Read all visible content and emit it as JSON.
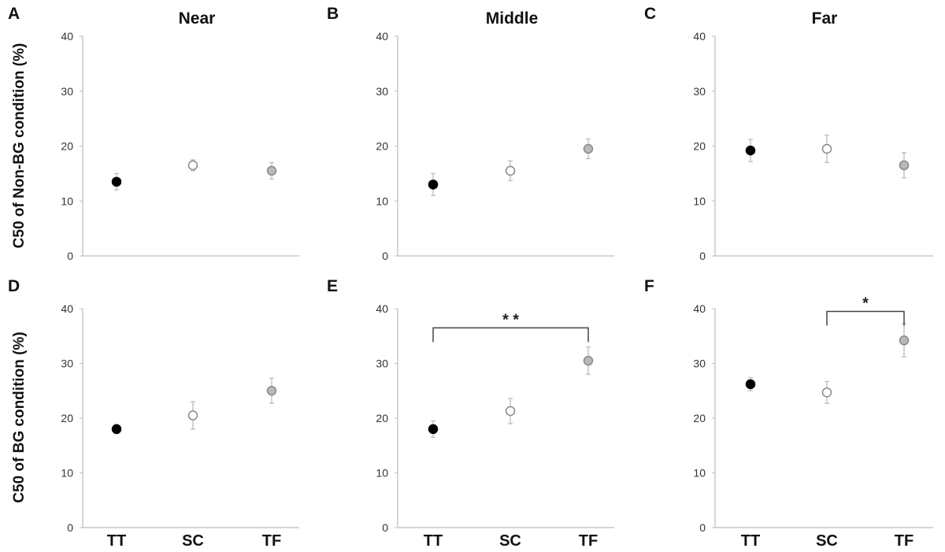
{
  "chart_data": [
    {
      "type": "scatter",
      "panel": "A",
      "title": "Near",
      "ylabel": "C50 of Non-BG condition (%)",
      "categories": [
        "TT",
        "SC",
        "TF"
      ],
      "ylim": [
        0,
        40
      ],
      "yticks": [
        0,
        10,
        20,
        30,
        40
      ],
      "values": [
        13.5,
        16.5,
        15.5
      ],
      "errors": [
        1.5,
        1.0,
        1.5
      ],
      "show_category_labels": false,
      "significance": null
    },
    {
      "type": "scatter",
      "panel": "B",
      "title": "Middle",
      "ylabel": "",
      "categories": [
        "TT",
        "SC",
        "TF"
      ],
      "ylim": [
        0,
        40
      ],
      "yticks": [
        0,
        10,
        20,
        30,
        40
      ],
      "values": [
        13.0,
        15.5,
        19.5
      ],
      "errors": [
        2.0,
        1.8,
        1.8
      ],
      "show_category_labels": false,
      "significance": null
    },
    {
      "type": "scatter",
      "panel": "C",
      "title": "Far",
      "ylabel": "",
      "categories": [
        "TT",
        "SC",
        "TF"
      ],
      "ylim": [
        0,
        40
      ],
      "yticks": [
        0,
        10,
        20,
        30,
        40
      ],
      "values": [
        19.2,
        19.5,
        16.5
      ],
      "errors": [
        2.0,
        2.5,
        2.3
      ],
      "show_category_labels": false,
      "significance": null
    },
    {
      "type": "scatter",
      "panel": "D",
      "title": "",
      "ylabel": "C50 of BG condition (%)",
      "categories": [
        "TT",
        "SC",
        "TF"
      ],
      "ylim": [
        0,
        40
      ],
      "yticks": [
        0,
        10,
        20,
        30,
        40
      ],
      "values": [
        18.0,
        20.5,
        25.0
      ],
      "errors": [
        0.8,
        2.5,
        2.3
      ],
      "show_category_labels": true,
      "significance": null
    },
    {
      "type": "scatter",
      "panel": "E",
      "title": "",
      "ylabel": "",
      "categories": [
        "TT",
        "SC",
        "TF"
      ],
      "ylim": [
        0,
        40
      ],
      "yticks": [
        0,
        10,
        20,
        30,
        40
      ],
      "values": [
        18.0,
        21.3,
        30.5
      ],
      "errors": [
        1.5,
        2.3,
        2.5
      ],
      "show_category_labels": true,
      "significance": {
        "from": "TT",
        "to": "TF",
        "level": 36.5,
        "label": "* *"
      }
    },
    {
      "type": "scatter",
      "panel": "F",
      "title": "",
      "ylabel": "",
      "categories": [
        "TT",
        "SC",
        "TF"
      ],
      "ylim": [
        0,
        40
      ],
      "yticks": [
        0,
        10,
        20,
        30,
        40
      ],
      "values": [
        26.2,
        24.7,
        34.2
      ],
      "errors": [
        1.2,
        2.0,
        3.0
      ],
      "show_category_labels": true,
      "significance": {
        "from": "SC",
        "to": "TF",
        "level": 39.5,
        "label": "*"
      }
    }
  ],
  "colors": {
    "TT": "#000000",
    "SC": "#ffffff",
    "TF": "#b8b8b8",
    "marker_edge": "#8a8a8a",
    "error_bar": "#c4c4c4",
    "axis": "#c8c8c8",
    "bracket": "#444444"
  },
  "legend": "none",
  "grid": false
}
